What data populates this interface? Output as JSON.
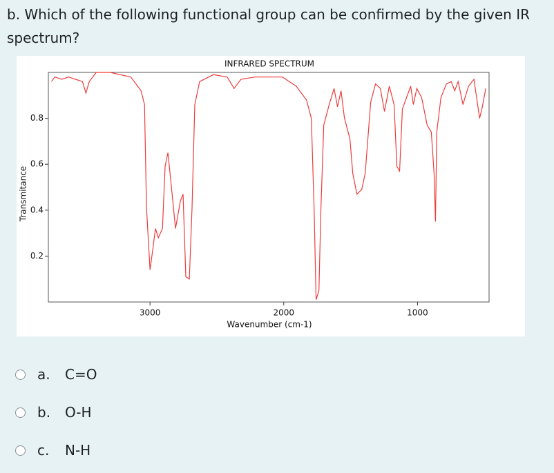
{
  "question": "b. Which of the following functional group can be confirmed by the given IR spectrum?",
  "chart_data": {
    "type": "line",
    "title": "INFRARED SPECTRUM",
    "x_label": "Wavenumber (cm-1)",
    "y_label": "Transmitance",
    "color": "#ee3b3b",
    "xlim": [
      3760,
      465
    ],
    "ylim": [
      0,
      1
    ],
    "xticks": [
      3000,
      2000,
      1000
    ],
    "yticks": [
      0.2,
      0.4,
      0.6,
      0.8
    ],
    "x": [
      3737,
      3711,
      3660,
      3608,
      3557,
      3505,
      3479,
      3454,
      3402,
      3299,
      3144,
      3067,
      3041,
      3026,
      3000,
      2979,
      2959,
      2938,
      2907,
      2887,
      2866,
      2845,
      2809,
      2773,
      2753,
      2732,
      2706,
      2686,
      2665,
      2629,
      2526,
      2423,
      2371,
      2320,
      2216,
      2010,
      1907,
      1830,
      1794,
      1773,
      1758,
      1737,
      1722,
      1701,
      1660,
      1624,
      1598,
      1572,
      1546,
      1505,
      1484,
      1453,
      1417,
      1391,
      1350,
      1314,
      1278,
      1247,
      1211,
      1175,
      1154,
      1134,
      1113,
      1082,
      1051,
      1031,
      1005,
      969,
      928,
      897,
      876,
      866,
      856,
      825,
      784,
      747,
      722,
      696,
      660,
      619,
      578,
      536,
      515,
      490
    ],
    "values": [
      0.96,
      0.98,
      0.97,
      0.98,
      0.97,
      0.96,
      0.91,
      0.96,
      1.0,
      1.0,
      0.98,
      0.92,
      0.86,
      0.41,
      0.14,
      0.23,
      0.32,
      0.28,
      0.32,
      0.59,
      0.65,
      0.53,
      0.32,
      0.44,
      0.47,
      0.11,
      0.1,
      0.41,
      0.86,
      0.96,
      0.99,
      0.98,
      0.93,
      0.97,
      0.98,
      0.98,
      0.94,
      0.88,
      0.8,
      0.41,
      0.01,
      0.05,
      0.41,
      0.77,
      0.86,
      0.93,
      0.85,
      0.92,
      0.8,
      0.71,
      0.56,
      0.47,
      0.49,
      0.56,
      0.87,
      0.95,
      0.93,
      0.83,
      0.94,
      0.86,
      0.59,
      0.57,
      0.84,
      0.89,
      0.94,
      0.86,
      0.93,
      0.89,
      0.77,
      0.74,
      0.56,
      0.35,
      0.74,
      0.89,
      0.95,
      0.96,
      0.92,
      0.96,
      0.86,
      0.94,
      0.97,
      0.8,
      0.85,
      0.93
    ]
  },
  "options": [
    {
      "letter": "a.",
      "text": "C=O"
    },
    {
      "letter": "b.",
      "text": "O-H"
    },
    {
      "letter": "c.",
      "text": "N-H"
    }
  ]
}
